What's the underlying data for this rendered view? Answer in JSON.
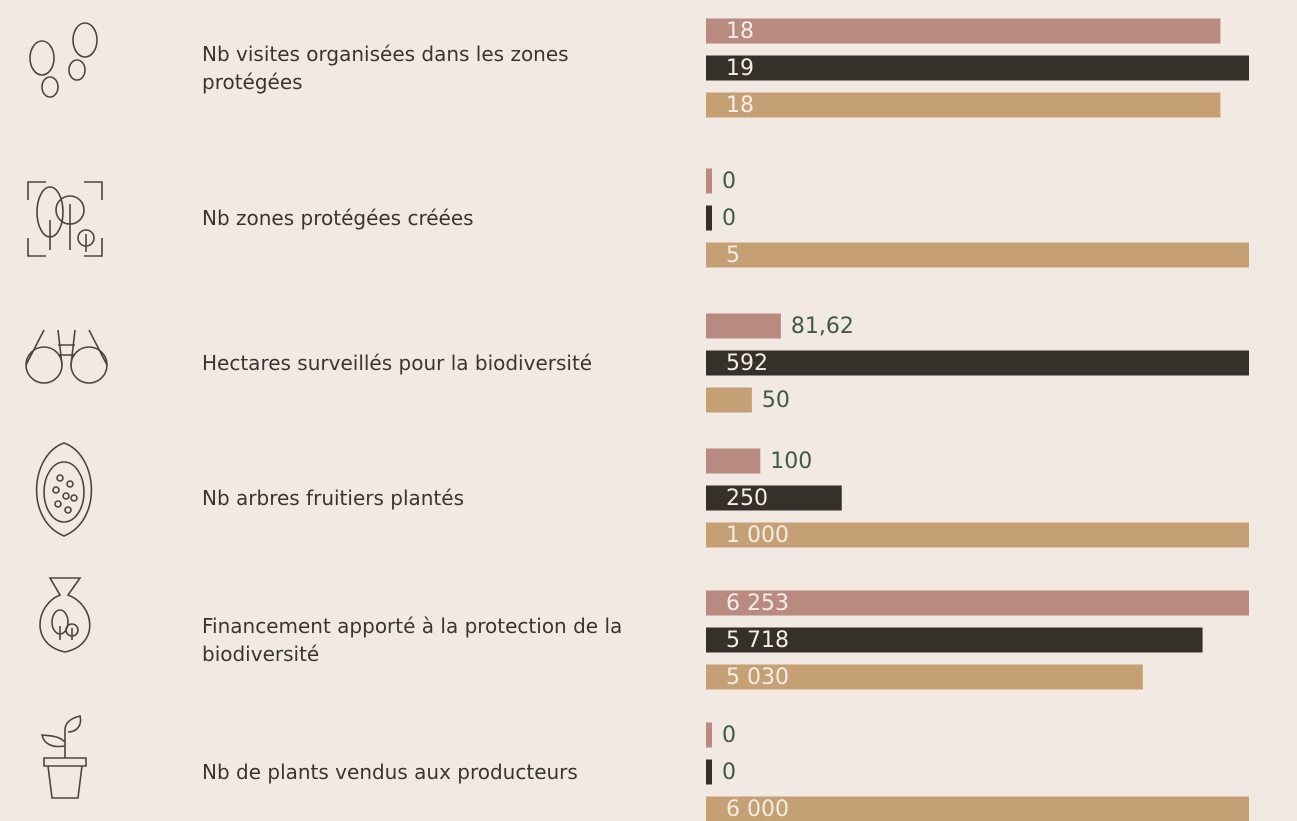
{
  "rows": [
    {
      "label": "Nb visites organisées dans les zones protégées",
      "values": [
        18,
        19,
        18
      ]
    },
    {
      "label": "Nb zones protégées créées",
      "values": [
        0,
        0,
        5
      ]
    },
    {
      "label": "Hectares surveillés pour la biodiversité",
      "values": [
        81.62,
        592,
        50
      ],
      "value_labels": [
        "81,62",
        "592",
        "50"
      ]
    },
    {
      "label": "Nb arbres fruitiers plantés",
      "values": [
        100,
        250,
        1000
      ],
      "value_labels": [
        "100",
        "250",
        "1 000"
      ]
    },
    {
      "label": "Financement apporté à la protection de la biodiversité",
      "values": [
        6253,
        5718,
        5030
      ],
      "value_labels": [
        "6 253",
        "5 718",
        "5 030"
      ]
    },
    {
      "label": "Nb de plants vendus aux producteurs",
      "values": [
        0,
        0,
        6000
      ],
      "value_labels": [
        "0",
        "0",
        "6 000"
      ]
    }
  ],
  "colors": [
    "#b98a80",
    "#35302a",
    "#c4a074"
  ]
}
